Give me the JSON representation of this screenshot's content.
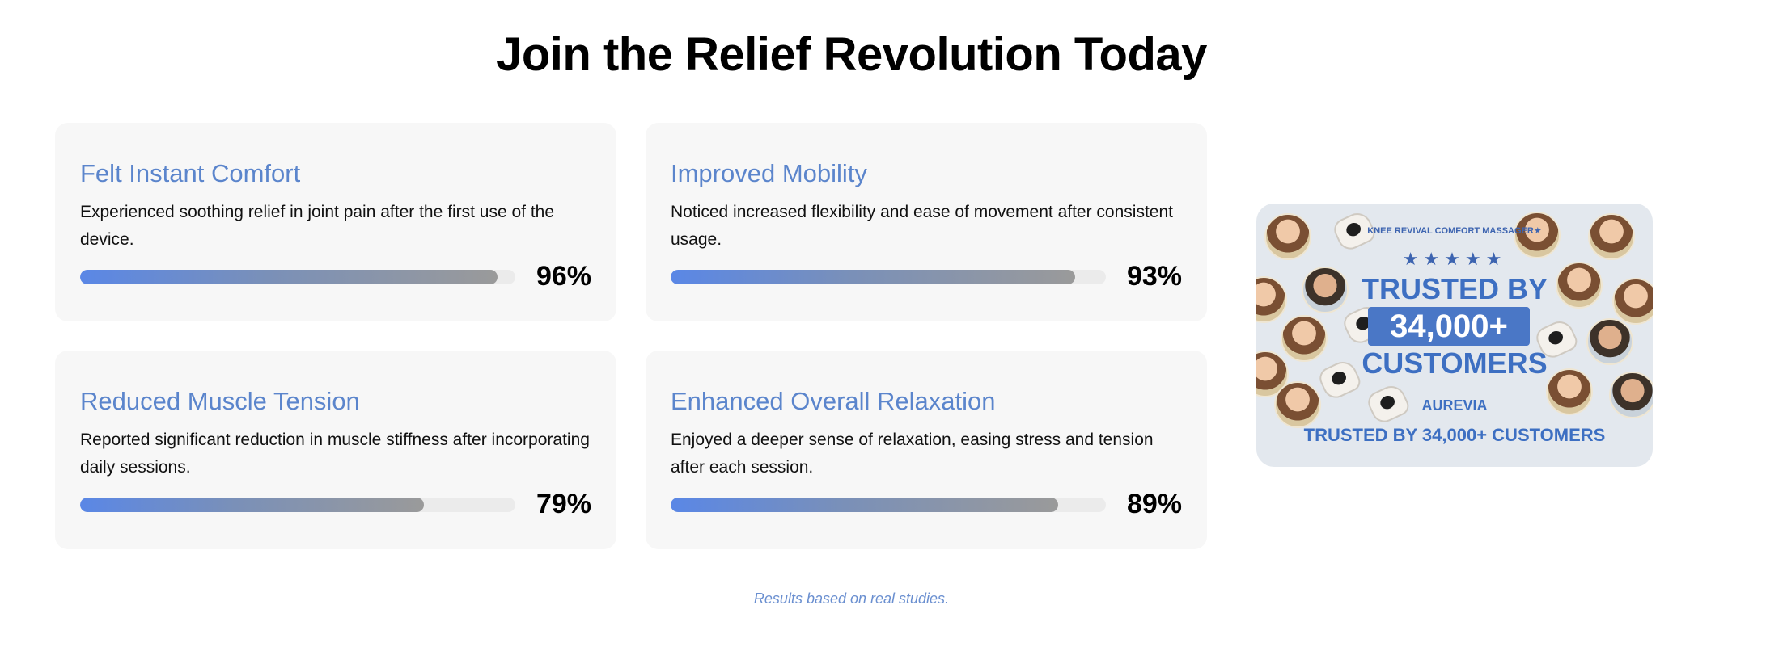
{
  "page": {
    "title": "Join the Relief Revolution Today",
    "footnote": "Results based on real studies."
  },
  "colors": {
    "accent": "#5b85cc",
    "bar_start": "#5a87e6",
    "bar_end": "#9a9a9a",
    "card_bg": "#f7f7f7"
  },
  "stats": [
    {
      "title": "Felt Instant Comfort",
      "description": "Experienced soothing relief in joint pain after the first use of the device.",
      "percent_label": "96%",
      "value": 96
    },
    {
      "title": "Improved Mobility",
      "description": "Noticed increased flexibility and ease of movement after consistent usage.",
      "percent_label": "93%",
      "value": 93
    },
    {
      "title": "Reduced Muscle Tension",
      "description": "Reported significant reduction in muscle stiffness after incorporating daily sessions.",
      "percent_label": "79%",
      "value": 79
    },
    {
      "title": "Enhanced Overall Relaxation",
      "description": "Enjoyed a deeper sense of relaxation, easing stress and tension after each session.",
      "percent_label": "89%",
      "value": 89
    }
  ],
  "promo": {
    "product": "KNEE REVIVAL COMFORT MASSAGER★",
    "stars": "★★★★★",
    "line1": "TRUSTED BY",
    "count": "34,000+",
    "line3": "CUSTOMERS",
    "brand": "AUREVIA",
    "footer": "TRUSTED BY 34,000+ CUSTOMERS"
  }
}
